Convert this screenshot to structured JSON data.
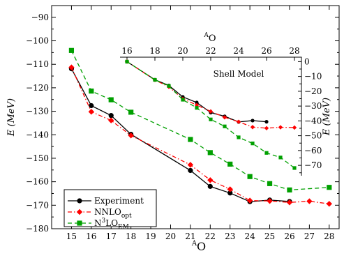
{
  "chart_data": [
    {
      "type": "line",
      "name": "main",
      "ylabel": "E (MeV)",
      "xlabel_prefix": "A",
      "xlabel": "O",
      "xlim": [
        14,
        28.5
      ],
      "ylim": [
        -180,
        -85
      ],
      "xticks": [
        15,
        16,
        17,
        18,
        19,
        20,
        21,
        22,
        23,
        24,
        25,
        26,
        27,
        28
      ],
      "yticks": [
        -180,
        -170,
        -160,
        -150,
        -140,
        -130,
        -120,
        -110,
        -100,
        -90
      ],
      "legend_position": "bottom-left",
      "series": [
        {
          "name": "Experiment",
          "color": "#000000",
          "marker": "circle",
          "dash": "solid",
          "x": [
            15,
            16,
            17,
            18,
            21,
            22,
            23,
            24,
            25,
            26
          ],
          "y": [
            -111.9,
            -127.6,
            -131.8,
            -139.8,
            -155.2,
            -162.0,
            -164.8,
            -168.5,
            -167.8,
            -168.4
          ]
        },
        {
          "name": "NNLO",
          "sub": "opt",
          "color": "#ff0000",
          "marker": "diamond",
          "dash": "dashdot",
          "x": [
            15,
            16,
            17,
            18,
            21,
            22,
            23,
            24,
            25,
            26,
            27,
            28
          ],
          "y": [
            -111.3,
            -130.2,
            -133.9,
            -140.3,
            -152.8,
            -159.3,
            -163.2,
            -168.0,
            -168.2,
            -168.8,
            -168.3,
            -169.4
          ]
        },
        {
          "name": "N",
          "sup": "3",
          "suffix": "LO",
          "sub": "EM",
          "color": "#00a000",
          "marker": "square",
          "dash": "dashed",
          "x": [
            15,
            16,
            17,
            18,
            21,
            22,
            23,
            24,
            25,
            26,
            28
          ],
          "y": [
            -104.1,
            -121.4,
            -125.1,
            -130.4,
            -142.0,
            -147.6,
            -152.5,
            -157.8,
            -160.8,
            -163.5,
            -162.4
          ]
        }
      ]
    },
    {
      "type": "line",
      "name": "inset",
      "title": "Shell Model",
      "ylabel": "E (MeV)",
      "xlabel_prefix": "A",
      "xlabel": "O",
      "xlim": [
        15.5,
        28.5
      ],
      "ylim": [
        -77,
        3
      ],
      "xticks": [
        16,
        18,
        20,
        22,
        24,
        26,
        28
      ],
      "yticks": [
        0,
        -10,
        -20,
        -30,
        -40,
        -50,
        -60,
        -70
      ],
      "series": [
        {
          "name": "Experiment",
          "color": "#000000",
          "marker": "circle",
          "dash": "solid",
          "x": [
            16,
            18,
            19,
            20,
            21,
            22,
            23,
            24,
            25,
            26
          ],
          "y": [
            0,
            -12.2,
            -16.1,
            -23.8,
            -27.6,
            -34.4,
            -36.9,
            -40.7,
            -39.8,
            -40.6
          ]
        },
        {
          "name": "NNLO",
          "color": "#ff0000",
          "marker": "diamond",
          "dash": "dashdot",
          "x": [
            16,
            18,
            19,
            20,
            21,
            22,
            23,
            24,
            25,
            26,
            27,
            28
          ],
          "y": [
            0,
            -12.4,
            -17.0,
            -25.1,
            -29.3,
            -33.6,
            -37.6,
            -40.6,
            -44.2,
            -44.9,
            -44.3,
            -44.5
          ]
        },
        {
          "name": "N3LO",
          "color": "#00a000",
          "marker": "square",
          "dash": "dashed",
          "x": [
            16,
            18,
            19,
            20,
            21,
            22,
            23,
            24,
            25,
            26,
            27,
            28
          ],
          "y": [
            0,
            -12.3,
            -16.4,
            -25.7,
            -31.2,
            -39.0,
            -43.7,
            -51.1,
            -55.2,
            -61.6,
            -64.7,
            -71.8
          ]
        }
      ]
    }
  ]
}
